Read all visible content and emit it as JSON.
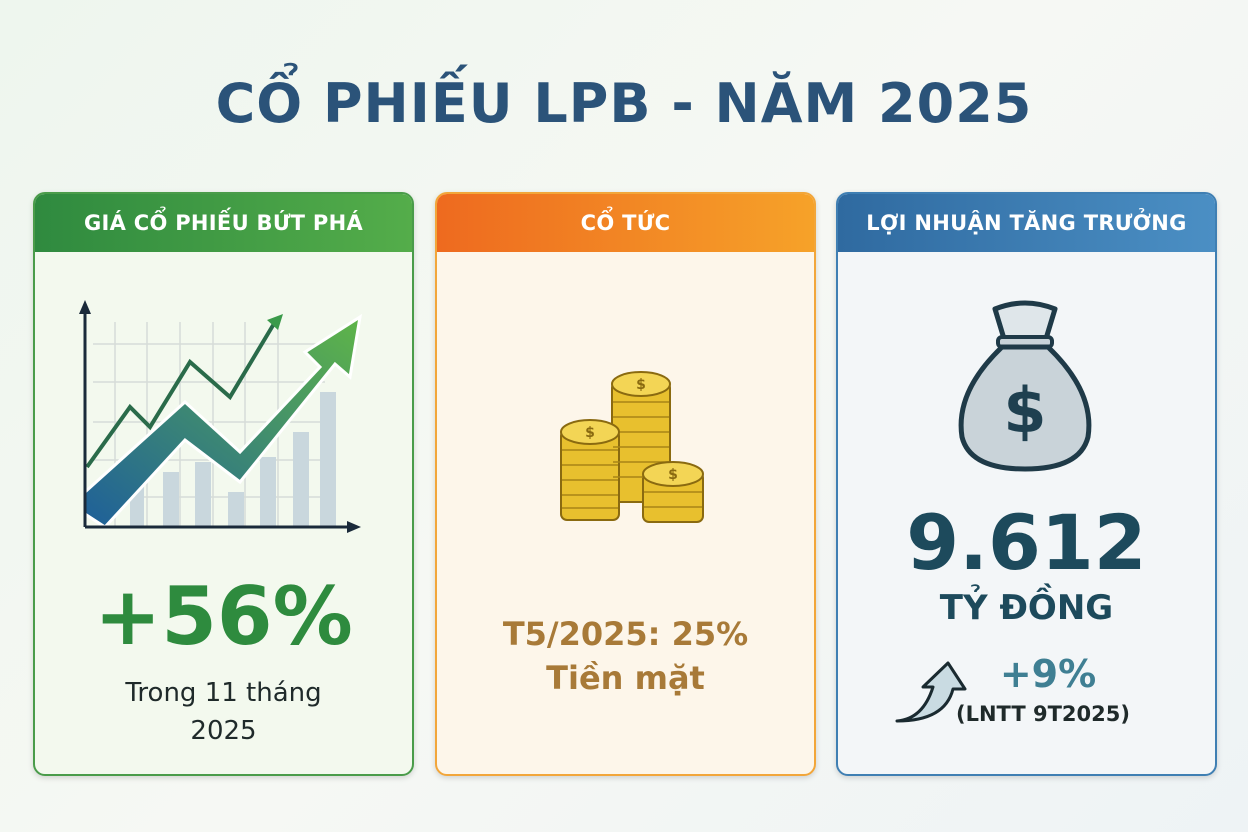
{
  "title": "CỔ PHIẾU LPB - NĂM 2025",
  "cards": [
    {
      "header": "GIÁ CỔ PHIẾU BỨT PHÁ",
      "icon": "growth-chart-icon",
      "value": "+56%",
      "caption_line1": "Trong 11 tháng",
      "caption_line2": "2025",
      "color": "#2e8b3e"
    },
    {
      "header": "CỔ TỨC",
      "icon": "coins-stack-icon",
      "line1": "T5/2025: 25%",
      "line2": "Tiền mặt",
      "color": "#f08a24"
    },
    {
      "header": "LỢI NHUẬN TĂNG TRƯỞNG",
      "icon": "money-bag-icon",
      "value": "9.612",
      "unit": "TỶ ĐỒNG",
      "change": "+9%",
      "note": "(LNTT 9T2025)",
      "color": "#2f6aa0"
    }
  ]
}
